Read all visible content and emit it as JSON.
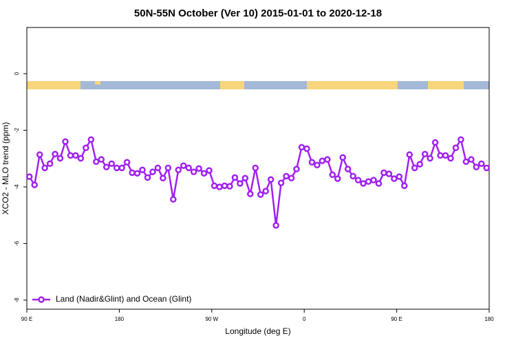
{
  "chart_data": {
    "type": "line",
    "title": "50N-55N October (Ver 10)   2015-01-01 to 2020-12-18",
    "x_label": "Longitude (deg E)",
    "y_label": "XCO2 - MLO trend (ppm)",
    "xlim": [
      90,
      540
    ],
    "ylim": [
      -8.32,
      1.63
    ],
    "xticks": [
      {
        "value": 90,
        "label": "90 E"
      },
      180,
      {
        "value": 270,
        "label": "90 W"
      },
      {
        "value": 360,
        "label": "0"
      },
      {
        "value": 450,
        "label": "90 E"
      },
      {
        "value": 540,
        "label": "180"
      }
    ],
    "yticks": [
      0,
      -2,
      -4,
      -6,
      -8
    ],
    "legend": "bottom-left",
    "series": [
      {
        "name": "Land (Nadir&Glint) and Ocean (Glint)",
        "color": "#a020f0",
        "x": [
          92.5,
          97.5,
          102.5,
          107.5,
          112.5,
          117.5,
          122.5,
          127.5,
          132.5,
          137.5,
          142.5,
          147.5,
          152.5,
          157.5,
          162.5,
          167.5,
          172.5,
          177.5,
          182.5,
          187.5,
          192.5,
          197.5,
          202.5,
          207.5,
          212.5,
          217.5,
          222.5,
          227.5,
          232.5,
          237.5,
          242.5,
          247.5,
          252.5,
          257.5,
          262.5,
          267.5,
          272.5,
          277.5,
          282.5,
          287.5,
          292.5,
          297.5,
          302.5,
          307.5,
          312.5,
          317.5,
          322.5,
          327.5,
          332.5,
          337.5,
          342.5,
          347.5,
          352.5,
          357.5,
          362.5,
          367.5,
          372.5,
          377.5,
          382.5,
          387.5,
          392.5,
          397.5,
          402.5,
          407.5,
          412.5,
          417.5,
          422.5,
          427.5,
          432.5,
          437.5,
          442.5,
          447.5,
          452.5,
          457.5,
          462.5,
          467.5,
          472.5,
          477.5,
          482.5,
          487.5,
          492.5,
          497.5,
          502.5,
          507.5,
          512.5,
          517.5,
          522.5,
          527.5,
          532.5,
          537.5
        ],
        "values": [
          -3.64,
          -3.93,
          -2.86,
          -3.33,
          -3.18,
          -2.84,
          -2.99,
          -2.4,
          -2.89,
          -2.89,
          -2.99,
          -2.62,
          -2.33,
          -3.11,
          -3.03,
          -3.3,
          -3.18,
          -3.33,
          -3.33,
          -3.13,
          -3.5,
          -3.52,
          -3.4,
          -3.67,
          -3.47,
          -3.33,
          -3.69,
          -3.33,
          -4.44,
          -3.4,
          -3.25,
          -3.33,
          -3.47,
          -3.35,
          -3.52,
          -3.42,
          -3.96,
          -4.0,
          -3.96,
          -3.98,
          -3.67,
          -3.88,
          -3.69,
          -4.25,
          -3.33,
          -4.27,
          -4.15,
          -3.74,
          -5.36,
          -3.86,
          -3.62,
          -3.69,
          -3.37,
          -2.6,
          -2.65,
          -3.13,
          -3.23,
          -3.08,
          -3.03,
          -3.57,
          -3.71,
          -2.96,
          -3.37,
          -3.62,
          -3.76,
          -3.88,
          -3.81,
          -3.76,
          -3.88,
          -3.5,
          -3.54,
          -3.71,
          -3.64,
          -3.96,
          -2.86,
          -3.33,
          -3.2,
          -2.84,
          -2.99,
          -2.43,
          -2.89,
          -2.89,
          -2.99,
          -2.62,
          -2.33,
          -3.11,
          -3.03,
          -3.3,
          -3.18,
          -3.33
        ]
      }
    ]
  }
}
